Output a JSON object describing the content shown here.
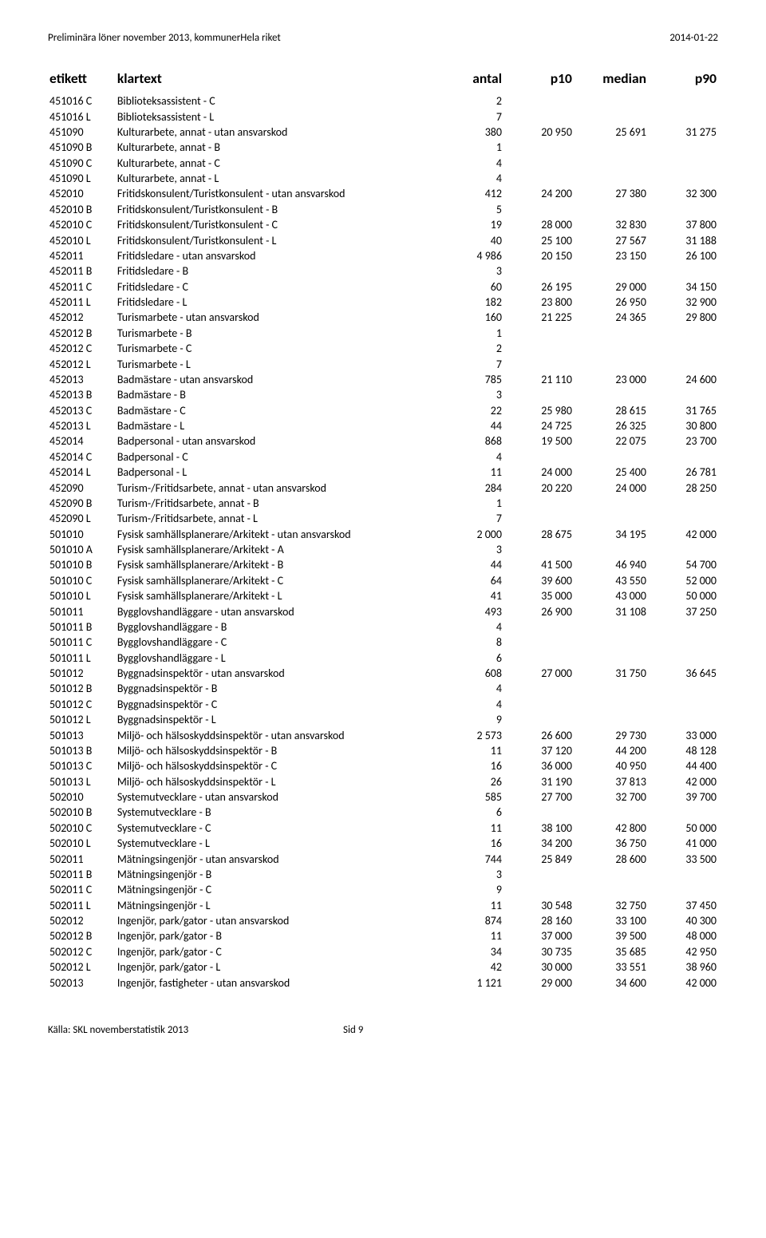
{
  "header": {
    "left": "Preliminära löner november 2013, kommunerHela riket",
    "right": "2014-01-22"
  },
  "columns": {
    "etikett": "etikett",
    "klartext": "klartext",
    "antal": "antal",
    "p10": "p10",
    "median": "median",
    "p90": "p90"
  },
  "rows": [
    {
      "etikett": "451016 C",
      "klartext": "Biblioteksassistent - C",
      "antal": "2",
      "p10": "",
      "median": "",
      "p90": ""
    },
    {
      "etikett": "451016 L",
      "klartext": "Biblioteksassistent - L",
      "antal": "7",
      "p10": "",
      "median": "",
      "p90": ""
    },
    {
      "etikett": "451090",
      "klartext": "Kulturarbete, annat - utan ansvarskod",
      "antal": "380",
      "p10": "20 950",
      "median": "25 691",
      "p90": "31 275"
    },
    {
      "etikett": "451090 B",
      "klartext": "Kulturarbete, annat - B",
      "antal": "1",
      "p10": "",
      "median": "",
      "p90": ""
    },
    {
      "etikett": "451090 C",
      "klartext": "Kulturarbete, annat - C",
      "antal": "4",
      "p10": "",
      "median": "",
      "p90": ""
    },
    {
      "etikett": "451090 L",
      "klartext": "Kulturarbete, annat - L",
      "antal": "4",
      "p10": "",
      "median": "",
      "p90": ""
    },
    {
      "etikett": "452010",
      "klartext": "Fritidskonsulent/Turistkonsulent - utan ansvarskod",
      "antal": "412",
      "p10": "24 200",
      "median": "27 380",
      "p90": "32 300"
    },
    {
      "etikett": "452010 B",
      "klartext": "Fritidskonsulent/Turistkonsulent - B",
      "antal": "5",
      "p10": "",
      "median": "",
      "p90": ""
    },
    {
      "etikett": "452010 C",
      "klartext": "Fritidskonsulent/Turistkonsulent - C",
      "antal": "19",
      "p10": "28 000",
      "median": "32 830",
      "p90": "37 800"
    },
    {
      "etikett": "452010 L",
      "klartext": "Fritidskonsulent/Turistkonsulent - L",
      "antal": "40",
      "p10": "25 100",
      "median": "27 567",
      "p90": "31 188"
    },
    {
      "etikett": "452011",
      "klartext": "Fritidsledare - utan ansvarskod",
      "antal": "4 986",
      "p10": "20 150",
      "median": "23 150",
      "p90": "26 100"
    },
    {
      "etikett": "452011 B",
      "klartext": "Fritidsledare - B",
      "antal": "3",
      "p10": "",
      "median": "",
      "p90": ""
    },
    {
      "etikett": "452011 C",
      "klartext": "Fritidsledare - C",
      "antal": "60",
      "p10": "26 195",
      "median": "29 000",
      "p90": "34 150"
    },
    {
      "etikett": "452011 L",
      "klartext": "Fritidsledare - L",
      "antal": "182",
      "p10": "23 800",
      "median": "26 950",
      "p90": "32 900"
    },
    {
      "etikett": "452012",
      "klartext": "Turismarbete - utan ansvarskod",
      "antal": "160",
      "p10": "21 225",
      "median": "24 365",
      "p90": "29 800"
    },
    {
      "etikett": "452012 B",
      "klartext": "Turismarbete - B",
      "antal": "1",
      "p10": "",
      "median": "",
      "p90": ""
    },
    {
      "etikett": "452012 C",
      "klartext": "Turismarbete - C",
      "antal": "2",
      "p10": "",
      "median": "",
      "p90": ""
    },
    {
      "etikett": "452012 L",
      "klartext": "Turismarbete - L",
      "antal": "7",
      "p10": "",
      "median": "",
      "p90": ""
    },
    {
      "etikett": "452013",
      "klartext": "Badmästare - utan ansvarskod",
      "antal": "785",
      "p10": "21 110",
      "median": "23 000",
      "p90": "24 600"
    },
    {
      "etikett": "452013 B",
      "klartext": "Badmästare - B",
      "antal": "3",
      "p10": "",
      "median": "",
      "p90": ""
    },
    {
      "etikett": "452013 C",
      "klartext": "Badmästare - C",
      "antal": "22",
      "p10": "25 980",
      "median": "28 615",
      "p90": "31 765"
    },
    {
      "etikett": "452013 L",
      "klartext": "Badmästare - L",
      "antal": "44",
      "p10": "24 725",
      "median": "26 325",
      "p90": "30 800"
    },
    {
      "etikett": "452014",
      "klartext": "Badpersonal - utan ansvarskod",
      "antal": "868",
      "p10": "19 500",
      "median": "22 075",
      "p90": "23 700"
    },
    {
      "etikett": "452014 C",
      "klartext": "Badpersonal - C",
      "antal": "4",
      "p10": "",
      "median": "",
      "p90": ""
    },
    {
      "etikett": "452014 L",
      "klartext": "Badpersonal - L",
      "antal": "11",
      "p10": "24 000",
      "median": "25 400",
      "p90": "26 781"
    },
    {
      "etikett": "452090",
      "klartext": "Turism-/Fritidsarbete, annat - utan ansvarskod",
      "antal": "284",
      "p10": "20 220",
      "median": "24 000",
      "p90": "28 250"
    },
    {
      "etikett": "452090 B",
      "klartext": "Turism-/Fritidsarbete, annat - B",
      "antal": "1",
      "p10": "",
      "median": "",
      "p90": ""
    },
    {
      "etikett": "452090 L",
      "klartext": "Turism-/Fritidsarbete, annat - L",
      "antal": "7",
      "p10": "",
      "median": "",
      "p90": ""
    },
    {
      "etikett": "501010",
      "klartext": "Fysisk samhällsplanerare/Arkitekt - utan ansvarskod",
      "antal": "2 000",
      "p10": "28 675",
      "median": "34 195",
      "p90": "42 000"
    },
    {
      "etikett": "501010 A",
      "klartext": "Fysisk samhällsplanerare/Arkitekt - A",
      "antal": "3",
      "p10": "",
      "median": "",
      "p90": ""
    },
    {
      "etikett": "501010 B",
      "klartext": "Fysisk samhällsplanerare/Arkitekt - B",
      "antal": "44",
      "p10": "41 500",
      "median": "46 940",
      "p90": "54 700"
    },
    {
      "etikett": "501010 C",
      "klartext": "Fysisk samhällsplanerare/Arkitekt - C",
      "antal": "64",
      "p10": "39 600",
      "median": "43 550",
      "p90": "52 000"
    },
    {
      "etikett": "501010 L",
      "klartext": "Fysisk samhällsplanerare/Arkitekt - L",
      "antal": "41",
      "p10": "35 000",
      "median": "43 000",
      "p90": "50 000"
    },
    {
      "etikett": "501011",
      "klartext": "Bygglovshandläggare - utan ansvarskod",
      "antal": "493",
      "p10": "26 900",
      "median": "31 108",
      "p90": "37 250"
    },
    {
      "etikett": "501011 B",
      "klartext": "Bygglovshandläggare - B",
      "antal": "4",
      "p10": "",
      "median": "",
      "p90": ""
    },
    {
      "etikett": "501011 C",
      "klartext": "Bygglovshandläggare - C",
      "antal": "8",
      "p10": "",
      "median": "",
      "p90": ""
    },
    {
      "etikett": "501011 L",
      "klartext": "Bygglovshandläggare - L",
      "antal": "6",
      "p10": "",
      "median": "",
      "p90": ""
    },
    {
      "etikett": "501012",
      "klartext": "Byggnadsinspektör - utan ansvarskod",
      "antal": "608",
      "p10": "27 000",
      "median": "31 750",
      "p90": "36 645"
    },
    {
      "etikett": "501012 B",
      "klartext": "Byggnadsinspektör - B",
      "antal": "4",
      "p10": "",
      "median": "",
      "p90": ""
    },
    {
      "etikett": "501012 C",
      "klartext": "Byggnadsinspektör - C",
      "antal": "4",
      "p10": "",
      "median": "",
      "p90": ""
    },
    {
      "etikett": "501012 L",
      "klartext": "Byggnadsinspektör - L",
      "antal": "9",
      "p10": "",
      "median": "",
      "p90": ""
    },
    {
      "etikett": "501013",
      "klartext": "Miljö- och hälsoskyddsinspektör - utan ansvarskod",
      "antal": "2 573",
      "p10": "26 600",
      "median": "29 730",
      "p90": "33 000"
    },
    {
      "etikett": "501013 B",
      "klartext": "Miljö- och hälsoskyddsinspektör - B",
      "antal": "11",
      "p10": "37 120",
      "median": "44 200",
      "p90": "48 128"
    },
    {
      "etikett": "501013 C",
      "klartext": "Miljö- och hälsoskyddsinspektör - C",
      "antal": "16",
      "p10": "36 000",
      "median": "40 950",
      "p90": "44 400"
    },
    {
      "etikett": "501013 L",
      "klartext": "Miljö- och hälsoskyddsinspektör - L",
      "antal": "26",
      "p10": "31 190",
      "median": "37 813",
      "p90": "42 000"
    },
    {
      "etikett": "502010",
      "klartext": "Systemutvecklare - utan ansvarskod",
      "antal": "585",
      "p10": "27 700",
      "median": "32 700",
      "p90": "39 700"
    },
    {
      "etikett": "502010 B",
      "klartext": "Systemutvecklare - B",
      "antal": "6",
      "p10": "",
      "median": "",
      "p90": ""
    },
    {
      "etikett": "502010 C",
      "klartext": "Systemutvecklare - C",
      "antal": "11",
      "p10": "38 100",
      "median": "42 800",
      "p90": "50 000"
    },
    {
      "etikett": "502010 L",
      "klartext": "Systemutvecklare - L",
      "antal": "16",
      "p10": "34 200",
      "median": "36 750",
      "p90": "41 000"
    },
    {
      "etikett": "502011",
      "klartext": "Mätningsingenjör - utan ansvarskod",
      "antal": "744",
      "p10": "25 849",
      "median": "28 600",
      "p90": "33 500"
    },
    {
      "etikett": "502011 B",
      "klartext": "Mätningsingenjör - B",
      "antal": "3",
      "p10": "",
      "median": "",
      "p90": ""
    },
    {
      "etikett": "502011 C",
      "klartext": "Mätningsingenjör - C",
      "antal": "9",
      "p10": "",
      "median": "",
      "p90": ""
    },
    {
      "etikett": "502011 L",
      "klartext": "Mätningsingenjör - L",
      "antal": "11",
      "p10": "30 548",
      "median": "32 750",
      "p90": "37 450"
    },
    {
      "etikett": "502012",
      "klartext": "Ingenjör, park/gator - utan ansvarskod",
      "antal": "874",
      "p10": "28 160",
      "median": "33 100",
      "p90": "40 300"
    },
    {
      "etikett": "502012 B",
      "klartext": "Ingenjör, park/gator - B",
      "antal": "11",
      "p10": "37 000",
      "median": "39 500",
      "p90": "48 000"
    },
    {
      "etikett": "502012 C",
      "klartext": "Ingenjör, park/gator - C",
      "antal": "34",
      "p10": "30 735",
      "median": "35 685",
      "p90": "42 950"
    },
    {
      "etikett": "502012 L",
      "klartext": "Ingenjör, park/gator - L",
      "antal": "42",
      "p10": "30 000",
      "median": "33 551",
      "p90": "38 960"
    },
    {
      "etikett": "502013",
      "klartext": "Ingenjör, fastigheter - utan ansvarskod",
      "antal": "1 121",
      "p10": "29 000",
      "median": "34 600",
      "p90": "42 000"
    }
  ],
  "footer": {
    "left": "Källa: SKL novemberstatistik 2013",
    "center": "Sid 9"
  }
}
